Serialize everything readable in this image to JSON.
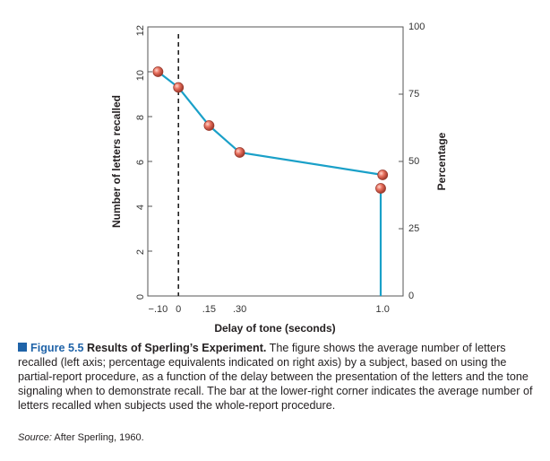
{
  "chart_data": {
    "type": "line",
    "title": "",
    "xlabel": "Delay of tone (seconds)",
    "ylabel": "Number of letters recalled",
    "y2label": "Percentage",
    "xlim": [
      -0.15,
      1.1
    ],
    "ylim": [
      0,
      12
    ],
    "x_ticks": [
      {
        "value": -0.1,
        "label": "−.10"
      },
      {
        "value": 0,
        "label": "0"
      },
      {
        "value": 0.15,
        "label": ".15"
      },
      {
        "value": 0.3,
        "label": ".30"
      },
      {
        "value": 1.0,
        "label": "1.0"
      }
    ],
    "y_ticks": [
      0,
      2,
      4,
      6,
      8,
      10,
      12
    ],
    "y2_ticks": [
      0,
      25,
      50,
      75,
      100
    ],
    "series": [
      {
        "name": "Partial report",
        "x": [
          -0.1,
          0.0,
          0.15,
          0.3,
          1.0
        ],
        "values": [
          10.0,
          9.3,
          7.6,
          6.4,
          5.4
        ]
      }
    ],
    "whole_report": {
      "value": 4.8
    },
    "tone_marker_x": 0,
    "colors": {
      "line": "#1aa0c8",
      "marker": "#e07060",
      "marker_edge": "#9a3a2e",
      "dashed": "#222222"
    }
  },
  "caption": {
    "figure_label": "Figure 5.5",
    "title": "Results of Sperling’s Experiment.",
    "text": "The figure shows the average number of letters recalled (left axis; percentage equivalents indicated on right axis) by a subject, based on using the partial-report procedure, as a function of the delay between the presentation of the letters and the tone signaling when to demonstrate recall. The bar at the lower-right corner indicates the average number of letters recalled when subjects used the whole-report procedure.",
    "source_label": "Source:",
    "source_text": "After Sperling, 1960."
  }
}
